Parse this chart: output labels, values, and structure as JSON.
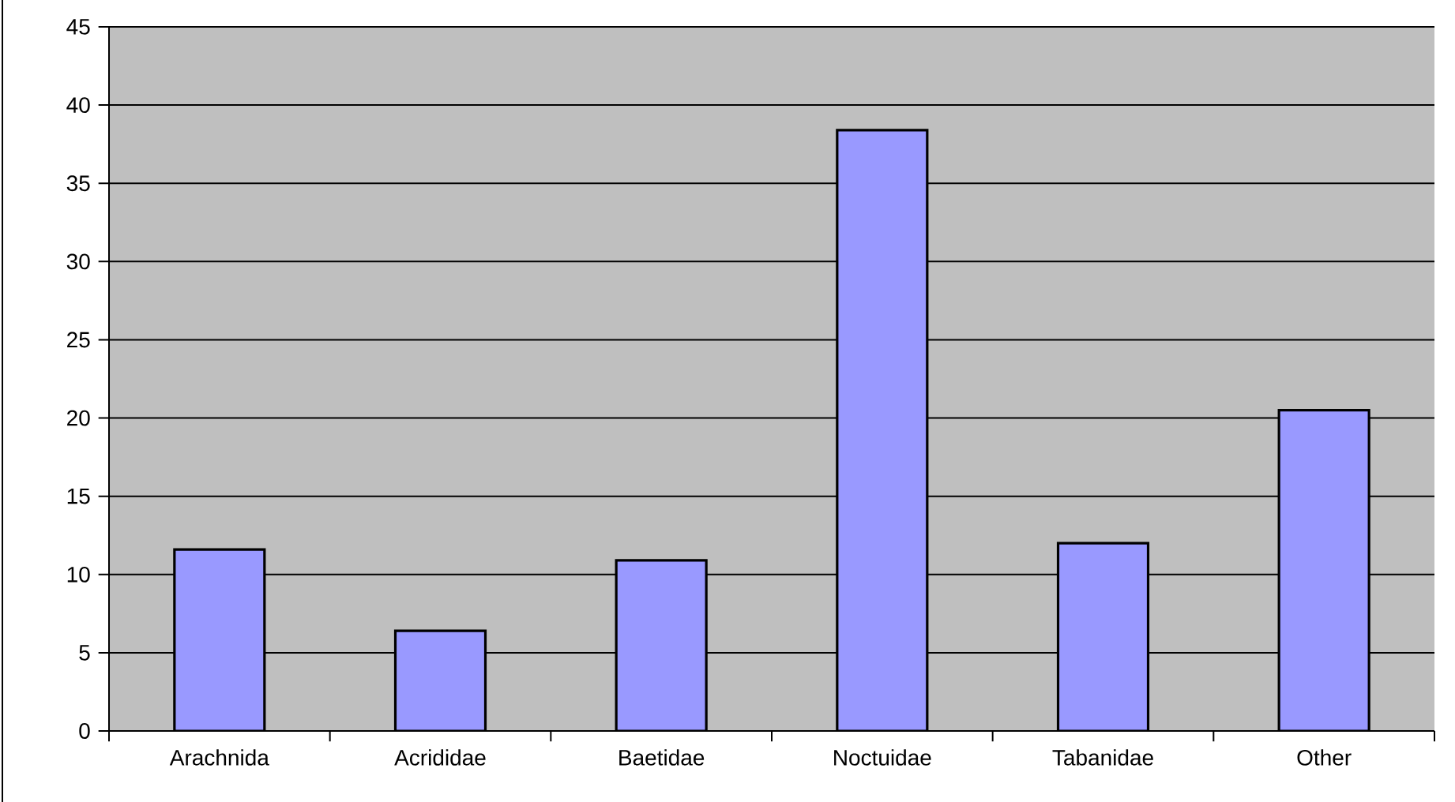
{
  "chart_data": {
    "type": "bar",
    "categories": [
      "Arachnida",
      "Acrididae",
      "Baetidae",
      "Noctuidae",
      "Tabanidae",
      "Other"
    ],
    "values": [
      11.6,
      6.4,
      10.9,
      38.4,
      12.0,
      20.5
    ],
    "color": "#9999ff",
    "ylim": [
      0,
      45
    ],
    "yticks": [
      0,
      5,
      10,
      15,
      20,
      25,
      30,
      35,
      40,
      45
    ],
    "grid": "y"
  }
}
